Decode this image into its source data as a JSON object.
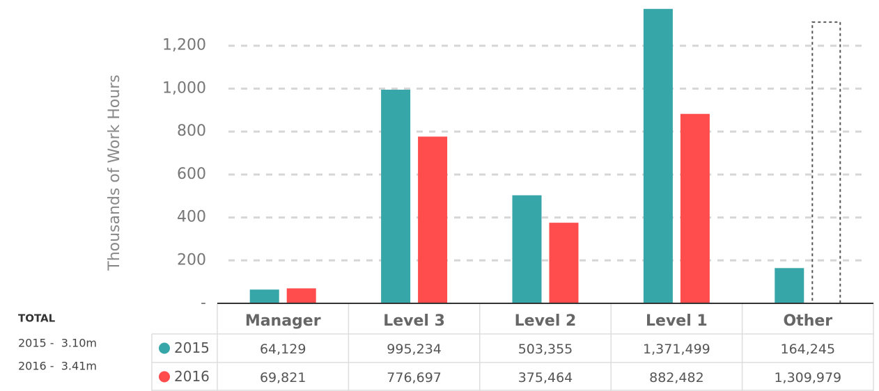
{
  "chart_data": {
    "type": "bar",
    "y_label": "Thousands of Work Hours",
    "categories": [
      "Manager",
      "Level 3",
      "Level 2",
      "Level 1",
      "Other"
    ],
    "series": [
      {
        "name": "2015",
        "color": "#36a6a9",
        "values": [
          64.129,
          995.234,
          503.355,
          1371.499,
          164.245
        ],
        "value_labels": [
          "64,129",
          "995,234",
          "503,355",
          "1,371,499",
          "164,245"
        ],
        "styles": [
          "solid",
          "solid",
          "solid",
          "solid",
          "solid"
        ]
      },
      {
        "name": "2016",
        "color": "#ff4c4c",
        "values": [
          69.821,
          776.697,
          375.464,
          882.482,
          1309.979
        ],
        "value_labels": [
          "69,821",
          "776,697",
          "375,464",
          "882,482",
          "1,309,979"
        ],
        "styles": [
          "solid",
          "solid",
          "solid",
          "solid",
          "dashed"
        ]
      }
    ],
    "ylim": [
      0,
      1400
    ],
    "yticks": [
      {
        "value": 0,
        "label": "-"
      },
      200,
      400,
      600,
      800,
      {
        "value": 1000,
        "label": "1,000"
      },
      {
        "value": 1200,
        "label": "1,200"
      }
    ],
    "grid": true,
    "totals": {
      "title": "TOTAL",
      "lines": [
        "2015 -  3.10m",
        "2016 -  3.41m"
      ]
    }
  }
}
